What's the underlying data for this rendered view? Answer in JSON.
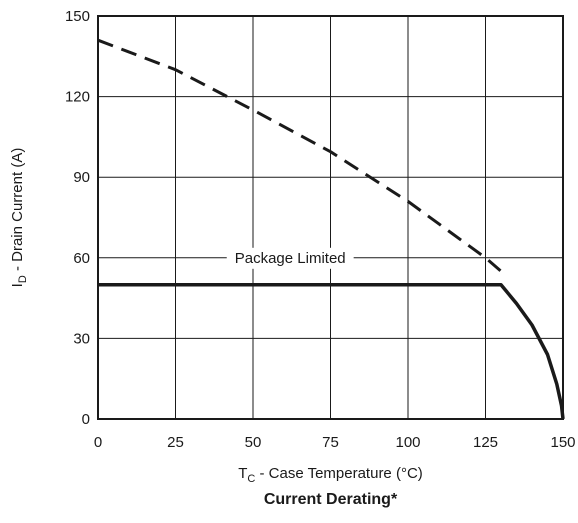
{
  "chart_data": {
    "type": "line",
    "title": "Current Derating*",
    "xlabel": {
      "main": "T",
      "sub": "C",
      "rest": " - Case Temperature (°C)"
    },
    "ylabel": {
      "main": "I",
      "sub": "D",
      "rest": " - Drain Current (A)"
    },
    "xlim": [
      0,
      150
    ],
    "ylim": [
      0,
      150
    ],
    "xticks": [
      0,
      25,
      50,
      75,
      100,
      125,
      150
    ],
    "yticks": [
      0,
      30,
      60,
      90,
      120,
      150
    ],
    "grid": true,
    "annotations": [
      {
        "text": "Package Limited",
        "x": 62,
        "y": 60
      }
    ],
    "series": [
      {
        "style": "dashed",
        "x": [
          0,
          25,
          50,
          75,
          100,
          125,
          130
        ],
        "y": [
          141,
          130,
          115,
          99.5,
          81,
          60,
          55
        ]
      },
      {
        "style": "solid",
        "x": [
          0,
          130,
          135,
          140,
          145,
          148,
          149.5,
          150
        ],
        "y": [
          50,
          50,
          43,
          35,
          24,
          13,
          5,
          0
        ]
      }
    ]
  }
}
